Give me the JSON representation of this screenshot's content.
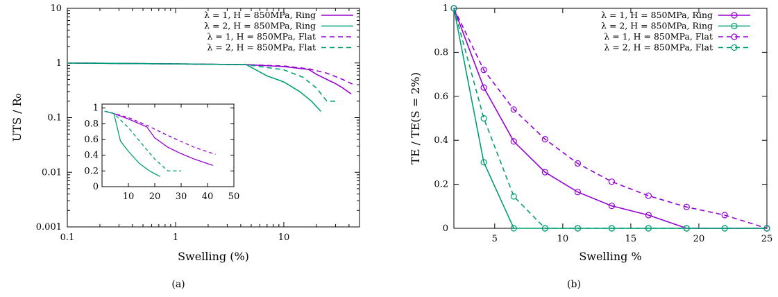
{
  "colors": {
    "purple": "#9400d3",
    "green": "#009e73",
    "axis": "#000000"
  },
  "panels": [
    {
      "caption": "(a)",
      "chart_data": {
        "type": "line",
        "xlabel": "Swelling (%)",
        "ylabel": "UTS / R₀",
        "xscale": "log",
        "yscale": "log",
        "xlim": [
          0.1,
          50
        ],
        "ylim": [
          0.001,
          10
        ],
        "xticks": [
          0.1,
          1,
          10
        ],
        "xtick_labels": [
          "0.1",
          "1",
          "10"
        ],
        "yticks": [
          0.001,
          0.01,
          0.1,
          1,
          10
        ],
        "ytick_labels": [
          "0.001",
          "0.01",
          "0.1",
          "1",
          "10"
        ],
        "legend_position": "top-right",
        "series": [
          {
            "name": "λ = 1, H = 850MPa, Ring",
            "color": "#9400d3",
            "dash": "solid",
            "marker": false,
            "x": [
              0.1,
              1,
              4.5,
              10,
              17,
              20,
              25,
              30,
              35,
              42
            ],
            "y": [
              1.0,
              0.96,
              0.93,
              0.86,
              0.76,
              0.62,
              0.5,
              0.42,
              0.35,
              0.27
            ]
          },
          {
            "name": "λ = 2, H = 850MPa, Ring",
            "color": "#009e73",
            "dash": "solid",
            "marker": false,
            "x": [
              0.1,
              1,
              4.5,
              7,
              10,
              14,
              18,
              22
            ],
            "y": [
              1.0,
              0.96,
              0.93,
              0.58,
              0.45,
              0.3,
              0.2,
              0.13
            ]
          },
          {
            "name": "λ = 1, H = 850MPa, Flat",
            "color": "#9400d3",
            "dash": "dashed",
            "marker": false,
            "x": [
              0.1,
              1,
              4.5,
              10,
              17,
              25,
              35,
              43
            ],
            "y": [
              1.0,
              0.96,
              0.93,
              0.88,
              0.78,
              0.65,
              0.5,
              0.41
            ]
          },
          {
            "name": "λ = 2, H = 850MPa, Flat",
            "color": "#009e73",
            "dash": "dashed",
            "marker": false,
            "x": [
              0.1,
              1,
              4.5,
              10,
              15,
              20,
              25,
              30
            ],
            "y": [
              1.0,
              0.96,
              0.93,
              0.75,
              0.55,
              0.35,
              0.2,
              0.2
            ]
          }
        ],
        "inset": {
          "xscale": "linear",
          "yscale": "linear",
          "xlim": [
            0,
            50
          ],
          "ylim": [
            0,
            1.05
          ],
          "xticks": [
            10,
            20,
            30,
            40,
            50
          ],
          "xtick_labels": [
            "10",
            "20",
            "30",
            "40",
            "50"
          ],
          "yticks": [
            0,
            0.2,
            0.4,
            0.6,
            0.8,
            1
          ],
          "ytick_labels": [
            "0",
            "0.2",
            "0.4",
            "0.6",
            "0.8",
            "1"
          ]
        }
      }
    },
    {
      "caption": "(b)",
      "chart_data": {
        "type": "line",
        "xlabel": "Swelling %",
        "ylabel": "TE / TE(S = 2%)",
        "xlim": [
          2,
          25
        ],
        "ylim": [
          0,
          1
        ],
        "xticks": [
          5,
          10,
          15,
          20,
          25
        ],
        "xtick_labels": [
          "5",
          "10",
          "15",
          "20",
          "25"
        ],
        "yticks": [
          0,
          0.2,
          0.4,
          0.6,
          0.8,
          1
        ],
        "ytick_labels": [
          "0",
          "0.2",
          "0.4",
          "0.6",
          "0.8",
          "1"
        ],
        "legend_position": "top-right",
        "series": [
          {
            "name": "λ = 1,  H = 850MPa, Ring",
            "color": "#9400d3",
            "dash": "solid",
            "marker": true,
            "x": [
              2,
              4.2,
              6.4,
              8.7,
              11.1,
              13.6,
              16.3,
              19.1,
              25
            ],
            "y": [
              1.0,
              0.64,
              0.395,
              0.255,
              0.165,
              0.102,
              0.06,
              0.0,
              0.0
            ]
          },
          {
            "name": "λ = 2,  H = 850MPa, Ring",
            "color": "#009e73",
            "dash": "solid",
            "marker": true,
            "x": [
              2,
              4.2,
              6.4,
              8.7,
              11.1,
              13.6,
              16.3,
              19.1,
              21.9,
              25
            ],
            "y": [
              1.0,
              0.3,
              0.0,
              0.0,
              0.0,
              0.0,
              0.0,
              0.0,
              0.0,
              0.0
            ]
          },
          {
            "name": "λ = 1,  H = 850MPa, Flat",
            "color": "#9400d3",
            "dash": "dashed",
            "marker": true,
            "x": [
              2,
              4.2,
              6.4,
              8.7,
              11.1,
              13.6,
              16.3,
              19.1,
              21.9,
              25
            ],
            "y": [
              1.0,
              0.72,
              0.54,
              0.405,
              0.295,
              0.212,
              0.148,
              0.097,
              0.06,
              0.0
            ]
          },
          {
            "name": "λ = 2,  H = 850MPa, Flat",
            "color": "#009e73",
            "dash": "dashed",
            "marker": true,
            "x": [
              2,
              4.2,
              6.4,
              8.7,
              11.1,
              13.6,
              16.3,
              19.1,
              21.9,
              25
            ],
            "y": [
              1.0,
              0.5,
              0.145,
              0.0,
              0.0,
              0.0,
              0.0,
              0.0,
              0.0,
              0.0
            ]
          }
        ]
      }
    }
  ]
}
